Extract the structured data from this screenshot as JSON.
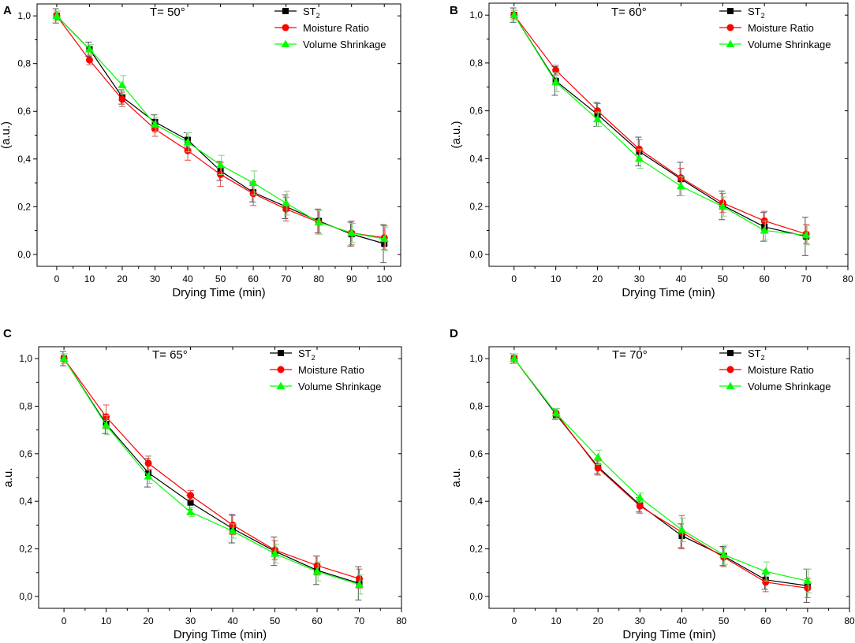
{
  "figure": {
    "panels": [
      "A",
      "B",
      "C",
      "D"
    ]
  },
  "chart_data": [
    {
      "type": "line",
      "panel_label": "A",
      "title": "T= 50°",
      "xlabel": "Drying Time (min)",
      "ylabel": "(a.u.)",
      "xlim": [
        -6,
        105
      ],
      "ylim": [
        -0.05,
        1.05
      ],
      "xticks": [
        0,
        10,
        20,
        30,
        40,
        50,
        60,
        70,
        80,
        90,
        100
      ],
      "yticks": [
        "0,0",
        "0,2",
        "0,4",
        "0,6",
        "0,8",
        "1,0"
      ],
      "legend_position": "top-right",
      "x": [
        0,
        10,
        20,
        30,
        40,
        50,
        60,
        70,
        80,
        90,
        100
      ],
      "series": [
        {
          "name": "ST2",
          "name_main": "ST",
          "name_sub": "2",
          "color": "#000000",
          "marker": "square",
          "values": [
            1.0,
            0.86,
            0.66,
            0.555,
            0.48,
            0.35,
            0.26,
            0.2,
            0.14,
            0.085,
            0.045
          ],
          "errors": [
            0.03,
            0.03,
            0.03,
            0.03,
            0.03,
            0.04,
            0.04,
            0.05,
            0.05,
            0.05,
            0.08
          ]
        },
        {
          "name": "Moisture Ratio",
          "color": "#ff0000",
          "marker": "circle",
          "values": [
            1.0,
            0.815,
            0.65,
            0.525,
            0.435,
            0.335,
            0.255,
            0.19,
            0.135,
            0.09,
            0.07
          ],
          "errors": [
            0.02,
            0.02,
            0.03,
            0.03,
            0.04,
            0.05,
            0.05,
            0.05,
            0.05,
            0.05,
            0.05
          ]
        },
        {
          "name": "Volume Shrinkage",
          "color": "#00ff00",
          "marker": "triangle",
          "values": [
            1.0,
            0.86,
            0.71,
            0.545,
            0.47,
            0.375,
            0.3,
            0.215,
            0.135,
            0.09,
            0.065
          ],
          "errors": [
            0.02,
            0.02,
            0.04,
            0.03,
            0.04,
            0.04,
            0.05,
            0.05,
            0.05,
            0.04,
            0.05
          ]
        }
      ]
    },
    {
      "type": "line",
      "panel_label": "B",
      "title": "T= 60°",
      "xlabel": "Drying Time (min)",
      "ylabel": "(a.u.)",
      "xlim": [
        -6,
        80
      ],
      "ylim": [
        -0.05,
        1.05
      ],
      "xticks": [
        0,
        10,
        20,
        30,
        40,
        50,
        60,
        70,
        80
      ],
      "yticks": [
        "0,0",
        "0,2",
        "0,4",
        "0,6",
        "0,8",
        "1,0"
      ],
      "legend_position": "top-right",
      "x": [
        0,
        10,
        20,
        30,
        40,
        50,
        60,
        70
      ],
      "series": [
        {
          "name": "ST2",
          "name_main": "ST",
          "name_sub": "2",
          "color": "#000000",
          "marker": "square",
          "values": [
            1.0,
            0.725,
            0.585,
            0.43,
            0.315,
            0.205,
            0.115,
            0.075
          ],
          "errors": [
            0.03,
            0.06,
            0.05,
            0.06,
            0.07,
            0.06,
            0.06,
            0.08
          ]
        },
        {
          "name": "Moisture Ratio",
          "color": "#ff0000",
          "marker": "circle",
          "values": [
            1.0,
            0.77,
            0.6,
            0.44,
            0.32,
            0.215,
            0.14,
            0.085
          ],
          "errors": [
            0.02,
            0.02,
            0.03,
            0.04,
            0.04,
            0.04,
            0.04,
            0.04
          ]
        },
        {
          "name": "Volume Shrinkage",
          "color": "#00ff00",
          "marker": "triangle",
          "values": [
            1.0,
            0.72,
            0.565,
            0.4,
            0.285,
            0.2,
            0.1,
            0.08
          ],
          "errors": [
            0.02,
            0.04,
            0.03,
            0.04,
            0.04,
            0.04,
            0.04,
            0.04
          ]
        }
      ]
    },
    {
      "type": "line",
      "panel_label": "C",
      "title": "T= 65°",
      "xlabel": "Drying Time (min)",
      "ylabel": "a.u.",
      "xlim": [
        -6,
        80
      ],
      "ylim": [
        -0.05,
        1.05
      ],
      "xticks": [
        0,
        10,
        20,
        30,
        40,
        50,
        60,
        70,
        80
      ],
      "yticks": [
        "0,0",
        "0,2",
        "0,4",
        "0,6",
        "0,8",
        "1,0"
      ],
      "legend_position": "top-right",
      "x": [
        0,
        10,
        20,
        30,
        40,
        50,
        60,
        70
      ],
      "series": [
        {
          "name": "ST2",
          "name_main": "ST",
          "name_sub": "2",
          "color": "#000000",
          "marker": "square",
          "values": [
            1.0,
            0.725,
            0.52,
            0.395,
            0.285,
            0.19,
            0.11,
            0.055
          ],
          "errors": [
            0.03,
            0.04,
            0.06,
            0.03,
            0.06,
            0.06,
            0.06,
            0.07
          ]
        },
        {
          "name": "Moisture Ratio",
          "color": "#ff0000",
          "marker": "circle",
          "values": [
            1.0,
            0.755,
            0.56,
            0.425,
            0.3,
            0.195,
            0.13,
            0.075
          ],
          "errors": [
            0.02,
            0.05,
            0.03,
            0.02,
            0.04,
            0.04,
            0.04,
            0.04
          ]
        },
        {
          "name": "Volume Shrinkage",
          "color": "#00ff00",
          "marker": "triangle",
          "values": [
            1.0,
            0.72,
            0.505,
            0.355,
            0.275,
            0.18,
            0.105,
            0.05
          ],
          "errors": [
            0.02,
            0.04,
            0.03,
            0.02,
            0.03,
            0.04,
            0.04,
            0.04
          ]
        }
      ]
    },
    {
      "type": "line",
      "panel_label": "D",
      "title": "T= 70°",
      "xlabel": "Drying Time (min)",
      "ylabel": "a.u.",
      "xlim": [
        -6,
        80
      ],
      "ylim": [
        -0.05,
        1.05
      ],
      "xticks": [
        0,
        10,
        20,
        30,
        40,
        50,
        60,
        70,
        80
      ],
      "yticks": [
        "0,0",
        "0,2",
        "0,4",
        "0,6",
        "0,8",
        "1,0"
      ],
      "legend_position": "top-right",
      "x": [
        0,
        10,
        20,
        30,
        40,
        50,
        60,
        70
      ],
      "series": [
        {
          "name": "ST2",
          "name_main": "ST",
          "name_sub": "2",
          "color": "#000000",
          "marker": "square",
          "values": [
            1.0,
            0.765,
            0.545,
            0.385,
            0.255,
            0.17,
            0.07,
            0.045
          ],
          "errors": [
            0.02,
            0.02,
            0.03,
            0.03,
            0.05,
            0.04,
            0.04,
            0.07
          ]
        },
        {
          "name": "Moisture Ratio",
          "color": "#ff0000",
          "marker": "circle",
          "values": [
            1.0,
            0.77,
            0.54,
            0.38,
            0.27,
            0.165,
            0.06,
            0.035
          ],
          "errors": [
            0.02,
            0.02,
            0.03,
            0.03,
            0.07,
            0.04,
            0.04,
            0.04
          ]
        },
        {
          "name": "Volume Shrinkage",
          "color": "#00ff00",
          "marker": "triangle",
          "values": [
            1.0,
            0.77,
            0.585,
            0.415,
            0.28,
            0.175,
            0.105,
            0.065
          ],
          "errors": [
            0.02,
            0.02,
            0.03,
            0.02,
            0.05,
            0.04,
            0.04,
            0.05
          ]
        }
      ]
    }
  ]
}
